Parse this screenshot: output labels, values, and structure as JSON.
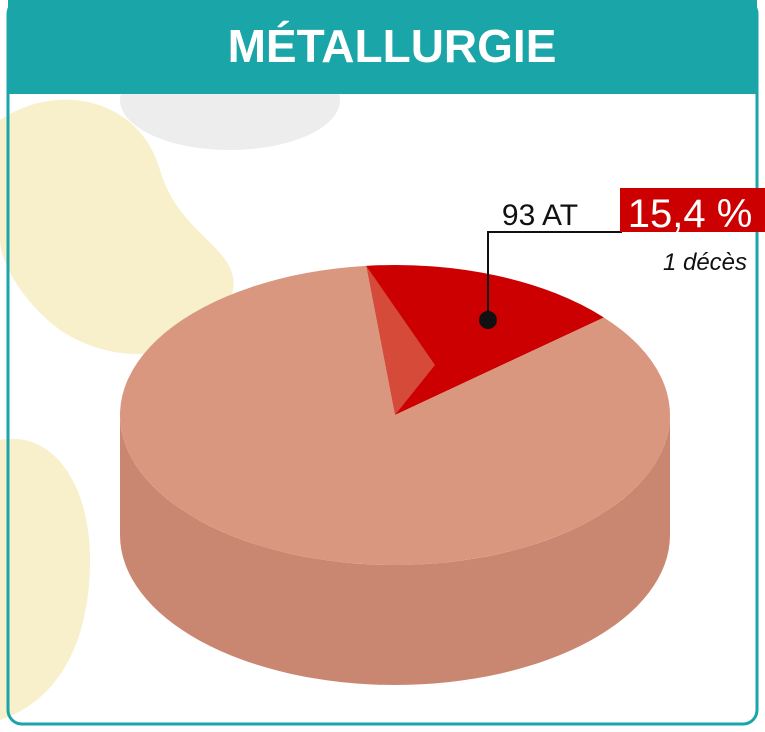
{
  "chart_data": {
    "type": "pie",
    "title": "MÉTALLURGIE",
    "categories": [
      null,
      null
    ],
    "values": [
      15.4,
      84.6
    ],
    "value_labels": [
      "15,4 %",
      null
    ],
    "colors": [
      "#cc0000",
      "#d9977f"
    ],
    "annotations": [
      "93 AT",
      "1 décès"
    ]
  }
}
